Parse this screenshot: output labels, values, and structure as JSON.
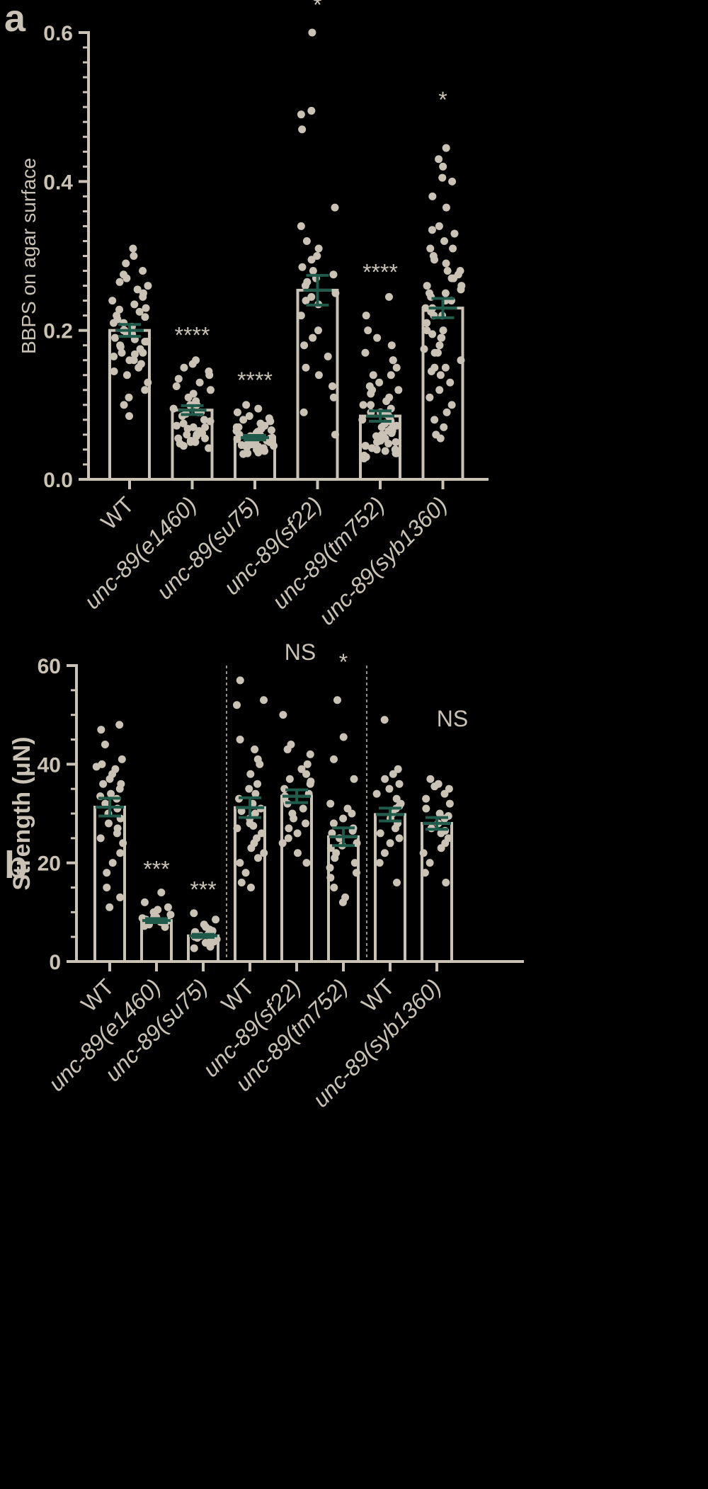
{
  "colors": {
    "background": "#000000",
    "foreground": "#c9c2b5",
    "error_bar": "#1f5a4a"
  },
  "chart_data": [
    {
      "type": "bar",
      "panel": "a",
      "ylabel": "BBPS  on agar surface",
      "ylim": [
        0,
        0.6
      ],
      "yticks": [
        "0.0",
        "0.2",
        "0.4",
        "0.6"
      ],
      "categories": [
        {
          "prefix": "",
          "italic": "",
          "suffix": "WT"
        },
        {
          "prefix": "",
          "italic": "unc-89",
          "suffix": "(e1460)"
        },
        {
          "prefix": "",
          "italic": "unc-89",
          "suffix": "(su75)"
        },
        {
          "prefix": "",
          "italic": "unc-89",
          "suffix": "(sf22)"
        },
        {
          "prefix": "",
          "italic": "unc-89",
          "suffix": "(tm752)"
        },
        {
          "prefix": "",
          "italic": "unc-89",
          "suffix": "(syb1360)"
        }
      ],
      "values": [
        0.2,
        0.093,
        0.056,
        0.254,
        0.085,
        0.23
      ],
      "sem": [
        0.008,
        0.006,
        0.003,
        0.02,
        0.007,
        0.013
      ],
      "significance": [
        "",
        "****",
        "****",
        "*",
        "****",
        "*"
      ],
      "points": [
        [
          0.31,
          0.3,
          0.29,
          0.28,
          0.275,
          0.27,
          0.265,
          0.26,
          0.255,
          0.25,
          0.245,
          0.24,
          0.235,
          0.23,
          0.228,
          0.225,
          0.22,
          0.218,
          0.215,
          0.21,
          0.205,
          0.2,
          0.198,
          0.195,
          0.19,
          0.188,
          0.185,
          0.18,
          0.178,
          0.175,
          0.17,
          0.168,
          0.165,
          0.16,
          0.155,
          0.15,
          0.145,
          0.14,
          0.13,
          0.12,
          0.11,
          0.1,
          0.085,
          0.21,
          0.185,
          0.17,
          0.2,
          0.16
        ],
        [
          0.16,
          0.155,
          0.15,
          0.145,
          0.14,
          0.135,
          0.13,
          0.125,
          0.12,
          0.115,
          0.11,
          0.105,
          0.1,
          0.098,
          0.095,
          0.09,
          0.088,
          0.085,
          0.08,
          0.078,
          0.075,
          0.072,
          0.07,
          0.068,
          0.065,
          0.062,
          0.06,
          0.058,
          0.055,
          0.052,
          0.05,
          0.048,
          0.045,
          0.042,
          0.1,
          0.09,
          0.07,
          0.06,
          0.055,
          0.05
        ],
        [
          0.1,
          0.095,
          0.09,
          0.085,
          0.082,
          0.08,
          0.078,
          0.075,
          0.072,
          0.07,
          0.068,
          0.066,
          0.064,
          0.062,
          0.06,
          0.058,
          0.056,
          0.055,
          0.054,
          0.052,
          0.05,
          0.048,
          0.046,
          0.045,
          0.044,
          0.042,
          0.04,
          0.038,
          0.036,
          0.035,
          0.034,
          0.06,
          0.058,
          0.05,
          0.047,
          0.043,
          0.065,
          0.07,
          0.04,
          0.052
        ],
        [
          0.6,
          0.495,
          0.49,
          0.47,
          0.365,
          0.34,
          0.32,
          0.31,
          0.3,
          0.295,
          0.285,
          0.28,
          0.275,
          0.27,
          0.265,
          0.26,
          0.25,
          0.245,
          0.24,
          0.235,
          0.22,
          0.2,
          0.19,
          0.18,
          0.165,
          0.15,
          0.14,
          0.125,
          0.11,
          0.09,
          0.06
        ],
        [
          0.245,
          0.22,
          0.2,
          0.19,
          0.18,
          0.17,
          0.16,
          0.15,
          0.14,
          0.13,
          0.125,
          0.12,
          0.115,
          0.11,
          0.105,
          0.1,
          0.095,
          0.09,
          0.088,
          0.085,
          0.08,
          0.078,
          0.075,
          0.072,
          0.07,
          0.068,
          0.065,
          0.062,
          0.06,
          0.058,
          0.055,
          0.052,
          0.05,
          0.048,
          0.045,
          0.042,
          0.04,
          0.038,
          0.035,
          0.032,
          0.03,
          0.028,
          0.1,
          0.09,
          0.07,
          0.06,
          0.05,
          0.04,
          0.035,
          0.045,
          0.065,
          0.08,
          0.12,
          0.14,
          0.16
        ],
        [
          0.445,
          0.43,
          0.42,
          0.405,
          0.4,
          0.38,
          0.365,
          0.34,
          0.335,
          0.33,
          0.32,
          0.31,
          0.3,
          0.295,
          0.29,
          0.28,
          0.275,
          0.27,
          0.26,
          0.255,
          0.25,
          0.245,
          0.24,
          0.23,
          0.225,
          0.22,
          0.21,
          0.2,
          0.195,
          0.19,
          0.18,
          0.175,
          0.17,
          0.16,
          0.15,
          0.145,
          0.14,
          0.13,
          0.12,
          0.11,
          0.1,
          0.09,
          0.08,
          0.07,
          0.06,
          0.055,
          0.25,
          0.2,
          0.17,
          0.15,
          0.22,
          0.27,
          0.31,
          0.23,
          0.24,
          0.28,
          0.26,
          0.19
        ]
      ]
    },
    {
      "type": "bar",
      "panel": "b",
      "ylabel": "Strength (μN)",
      "ylim": [
        0,
        60
      ],
      "yticks": [
        "0",
        "20",
        "40",
        "60"
      ],
      "groups_separated": [
        3,
        6
      ],
      "categories": [
        {
          "prefix": "",
          "italic": "",
          "suffix": "WT"
        },
        {
          "prefix": "",
          "italic": "unc-89",
          "suffix": "(e1460)"
        },
        {
          "prefix": "",
          "italic": "unc-89",
          "suffix": "(su75)"
        },
        {
          "prefix": "",
          "italic": "",
          "suffix": "WT"
        },
        {
          "prefix": "",
          "italic": "unc-89",
          "suffix": "(sf22)"
        },
        {
          "prefix": "",
          "italic": "unc-89",
          "suffix": "(tm752)"
        },
        {
          "prefix": "",
          "italic": "",
          "suffix": "WT"
        },
        {
          "prefix": "",
          "italic": "unc-89",
          "suffix": "(syb1360)"
        }
      ],
      "values": [
        31.3,
        8.3,
        5.2,
        31.2,
        33.5,
        25.3,
        29.8,
        28.0
      ],
      "sem": [
        1.8,
        0.4,
        0.3,
        2.0,
        1.3,
        1.8,
        1.3,
        1.2
      ],
      "significance": [
        "",
        "***",
        "***",
        "",
        "NS",
        "*",
        "",
        "NS"
      ],
      "points": [
        [
          48,
          47,
          44,
          41,
          40,
          39,
          38,
          37,
          36,
          35,
          34,
          33,
          32,
          31,
          30,
          29,
          28,
          27,
          26,
          25,
          24,
          22,
          20,
          18,
          15,
          13,
          11,
          39.5,
          33.5,
          36
        ],
        [
          14,
          12,
          11,
          10,
          9.5,
          9,
          8.8,
          8.5,
          8.2,
          8,
          7.8,
          7.5,
          7.2,
          7,
          10.5,
          9
        ],
        [
          9.8,
          8.5,
          7.5,
          7,
          6.5,
          6,
          5.8,
          5.5,
          5.2,
          5,
          4.8,
          4.5,
          4.2,
          4,
          3.8,
          3.5,
          3,
          2.7,
          6.2
        ],
        [
          57,
          53,
          52,
          45,
          43,
          41,
          40,
          38,
          36,
          34,
          33,
          32,
          31,
          30,
          29,
          28,
          27,
          26,
          25,
          24,
          23,
          22,
          21,
          20,
          18,
          16,
          15,
          35,
          27.5,
          30.5
        ],
        [
          50,
          44,
          43,
          42,
          40,
          39,
          38,
          37,
          36,
          35,
          34,
          33,
          32,
          31,
          30,
          29,
          28,
          27,
          26,
          25,
          24,
          22,
          20,
          33.5,
          36.5
        ],
        [
          53,
          45.5,
          41,
          37,
          32,
          31,
          30,
          29,
          28,
          27,
          26,
          25,
          24,
          23,
          22,
          21,
          20,
          19,
          18,
          17,
          15,
          13,
          12,
          26.5,
          23.5
        ],
        [
          49,
          39,
          38,
          37,
          36,
          35,
          34,
          33,
          32,
          31,
          30,
          29,
          28,
          27,
          26,
          25,
          24,
          22,
          20,
          16,
          31.5
        ],
        [
          37,
          36,
          35.5,
          35,
          34,
          33,
          32,
          31,
          30,
          29,
          28,
          27,
          26,
          25,
          24,
          23,
          22,
          20,
          18,
          16,
          29.5,
          26.5
        ]
      ]
    }
  ],
  "labels": {
    "panel_a": "a",
    "panel_b": "b"
  }
}
